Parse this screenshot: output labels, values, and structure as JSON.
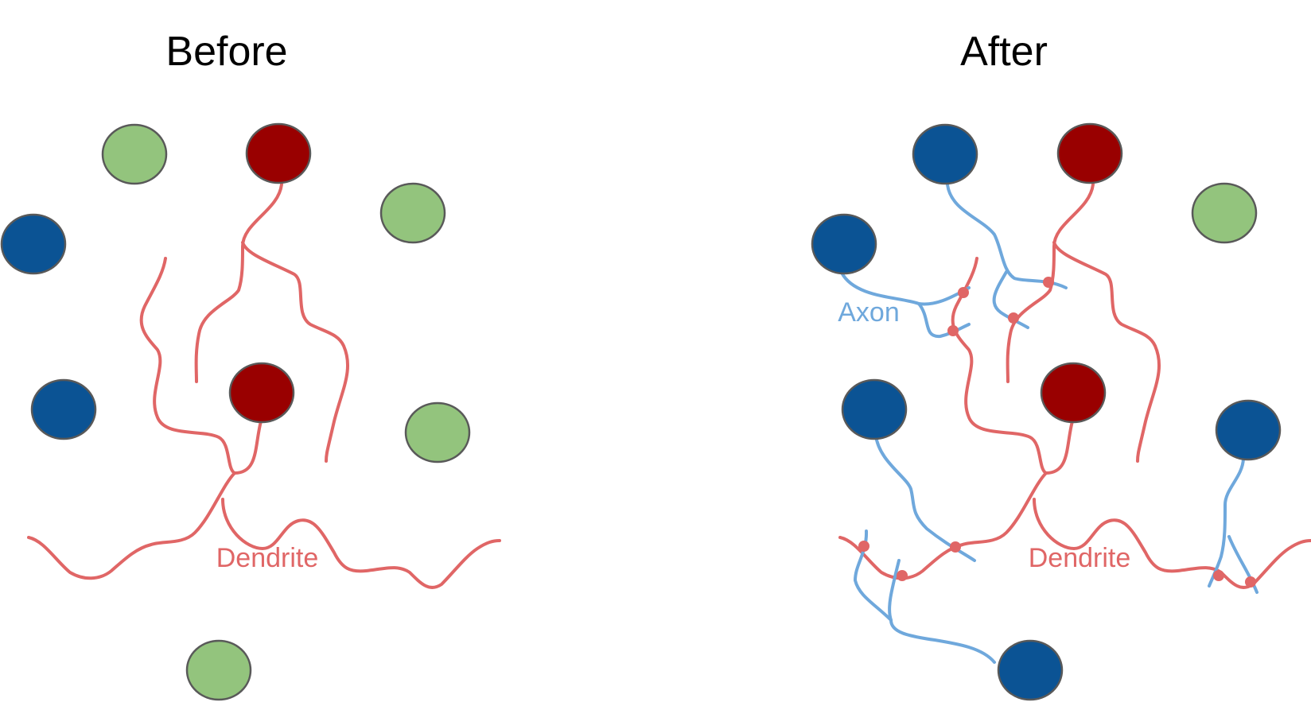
{
  "panels": {
    "before": {
      "title": "Before"
    },
    "after": {
      "title": "After"
    }
  },
  "labels": {
    "dendrite": "Dendrite",
    "axon": "Axon"
  },
  "colors": {
    "green_neuron": "#93c47d",
    "red_neuron": "#990000",
    "blue_neuron": "#0b5394",
    "dendrite": "#e06666",
    "axon": "#6fa8dc",
    "synapse": "#e06666",
    "neuron_outline": "#595959"
  }
}
